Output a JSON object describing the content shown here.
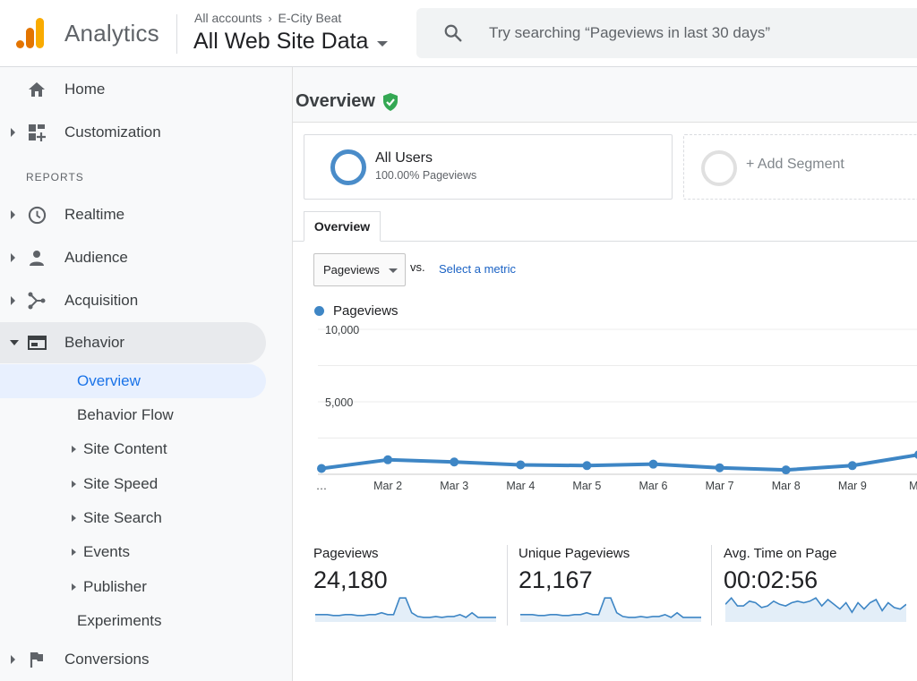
{
  "app": {
    "name": "Analytics",
    "breadcrumb": [
      "All accounts",
      "E-City Beat"
    ],
    "property": "All Web Site Data"
  },
  "search": {
    "placeholder": "Try searching “Pageviews in last 30 days”"
  },
  "sidebar": {
    "home": "Home",
    "customization": "Customization",
    "reports_header": "REPORTS",
    "realtime": "Realtime",
    "audience": "Audience",
    "acquisition": "Acquisition",
    "behavior": "Behavior",
    "behavior_sub": [
      "Overview",
      "Behavior Flow",
      "Site Content",
      "Site Speed",
      "Site Search",
      "Events",
      "Publisher",
      "Experiments"
    ],
    "conversions": "Conversions"
  },
  "main": {
    "title": "Overview",
    "segment": {
      "name": "All Users",
      "sub": "100.00% Pageviews"
    },
    "add_segment": "+ Add Segment",
    "tab": "Overview",
    "metric_select": "Pageviews",
    "vs": "vs.",
    "select_metric": "Select a metric",
    "legend": "Pageviews"
  },
  "colors": {
    "line": "#3e86c5",
    "accent_blue": "#1a73e8",
    "shield_green": "#34a853"
  },
  "chart_data": {
    "type": "line",
    "series": [
      {
        "name": "Pageviews",
        "values": [
          400,
          1000,
          850,
          650,
          600,
          700,
          450,
          300,
          600,
          1350
        ]
      }
    ],
    "categories": [
      "…",
      "Mar 2",
      "Mar 3",
      "Mar 4",
      "Mar 5",
      "Mar 6",
      "Mar 7",
      "Mar 8",
      "Mar 9",
      "Mar"
    ],
    "y_ticks": [
      "10,000",
      "5,000"
    ],
    "ylim": [
      0,
      10000
    ],
    "grid": true
  },
  "scorecards": [
    {
      "title": "Pageviews",
      "value": "24,180",
      "spark": [
        3,
        3,
        3,
        2.5,
        2.5,
        3,
        3,
        2.5,
        2.5,
        3,
        3,
        4,
        3,
        3,
        12,
        12,
        4,
        2,
        1.5,
        1.5,
        2,
        1.5,
        2,
        2,
        3,
        1.5,
        4,
        1.5,
        1.5,
        1.5,
        1.5
      ]
    },
    {
      "title": "Unique Pageviews",
      "value": "21,167",
      "spark": [
        3,
        3,
        3,
        2.5,
        2.5,
        3,
        3,
        2.5,
        2.5,
        3,
        3,
        4,
        3,
        3,
        12,
        12,
        4,
        2,
        1.5,
        1.5,
        2,
        1.5,
        2,
        2,
        3,
        1.5,
        4,
        1.5,
        1.5,
        1.5,
        1.5
      ]
    },
    {
      "title": "Avg. Time on Page",
      "value": "00:02:56",
      "spark": [
        10,
        14,
        9,
        9,
        12,
        11,
        8,
        9,
        12,
        10,
        9,
        11,
        12,
        11,
        12,
        14,
        9,
        13,
        10,
        7,
        11,
        5,
        11,
        7,
        11,
        13,
        6,
        11,
        8,
        7,
        10
      ]
    }
  ]
}
